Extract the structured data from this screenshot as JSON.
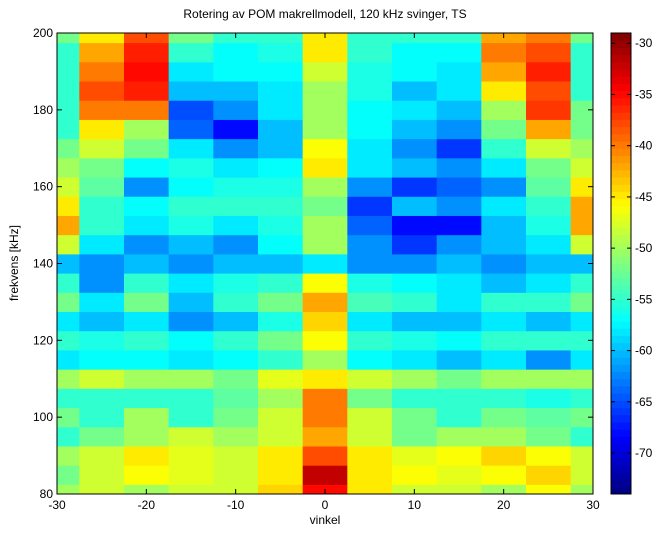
{
  "chart_data": {
    "type": "heatmap",
    "title": "Rotering av POM makrellmodell, 120 kHz svinger, TS",
    "x_label": "vinkel",
    "y_label": "frekvens [kHz]",
    "x": [
      -30,
      -25,
      -20,
      -15,
      -10,
      -5,
      0,
      5,
      10,
      15,
      20,
      25,
      30
    ],
    "y": [
      80,
      85,
      90,
      95,
      100,
      105,
      110,
      115,
      120,
      125,
      130,
      135,
      140,
      145,
      150,
      155,
      160,
      165,
      170,
      175,
      180,
      185,
      190,
      195,
      200
    ],
    "z": [
      [
        -50,
        -48,
        -50,
        -48,
        -48,
        -44,
        -35,
        -45,
        -48,
        -48,
        -50,
        -46,
        -50
      ],
      [
        -52,
        -48,
        -46,
        -47,
        -48,
        -45,
        -32,
        -45,
        -46,
        -47,
        -46,
        -44,
        -48
      ],
      [
        -50,
        -48,
        -45,
        -47,
        -48,
        -45,
        -38,
        -45,
        -47,
        -46,
        -44,
        -46,
        -48
      ],
      [
        -55,
        -52,
        -50,
        -48,
        -50,
        -48,
        -42,
        -48,
        -52,
        -50,
        -50,
        -52,
        -55
      ],
      [
        -52,
        -55,
        -50,
        -55,
        -52,
        -48,
        -40,
        -48,
        -52,
        -55,
        -52,
        -53,
        -52
      ],
      [
        -55,
        -55,
        -55,
        -55,
        -53,
        -50,
        -40,
        -52,
        -55,
        -55,
        -55,
        -56,
        -55
      ],
      [
        -50,
        -48,
        -50,
        -50,
        -52,
        -47,
        -45,
        -48,
        -50,
        -52,
        -50,
        -50,
        -50
      ],
      [
        -58,
        -57,
        -57,
        -58,
        -57,
        -55,
        -50,
        -57,
        -58,
        -60,
        -58,
        -62,
        -58
      ],
      [
        -55,
        -56,
        -55,
        -57,
        -55,
        -52,
        -46,
        -55,
        -56,
        -57,
        -55,
        -55,
        -55
      ],
      [
        -58,
        -60,
        -58,
        -62,
        -60,
        -56,
        -44,
        -58,
        -60,
        -60,
        -58,
        -60,
        -58
      ],
      [
        -52,
        -58,
        -52,
        -60,
        -55,
        -52,
        -42,
        -54,
        -55,
        -58,
        -55,
        -55,
        -52
      ],
      [
        -55,
        -62,
        -55,
        -58,
        -56,
        -55,
        -46,
        -56,
        -57,
        -58,
        -60,
        -58,
        -55
      ],
      [
        -60,
        -62,
        -60,
        -62,
        -60,
        -60,
        -58,
        -62,
        -62,
        -60,
        -62,
        -60,
        -60
      ],
      [
        -48,
        -58,
        -62,
        -60,
        -62,
        -57,
        -50,
        -62,
        -66,
        -62,
        -60,
        -58,
        -48
      ],
      [
        -42,
        -55,
        -58,
        -56,
        -58,
        -56,
        -50,
        -64,
        -68,
        -68,
        -60,
        -56,
        -42
      ],
      [
        -45,
        -55,
        -57,
        -55,
        -55,
        -55,
        -52,
        -66,
        -60,
        -62,
        -58,
        -55,
        -42
      ],
      [
        -48,
        -53,
        -62,
        -57,
        -56,
        -56,
        -50,
        -62,
        -66,
        -64,
        -62,
        -53,
        -45
      ],
      [
        -50,
        -52,
        -57,
        -56,
        -58,
        -57,
        -45,
        -58,
        -60,
        -62,
        -58,
        -52,
        -48
      ],
      [
        -52,
        -48,
        -52,
        -58,
        -62,
        -60,
        -46,
        -58,
        -62,
        -66,
        -55,
        -48,
        -50
      ],
      [
        -55,
        -45,
        -50,
        -64,
        -68,
        -60,
        -50,
        -57,
        -60,
        -62,
        -52,
        -42,
        -52
      ],
      [
        -55,
        -40,
        -40,
        -65,
        -62,
        -58,
        -50,
        -57,
        -58,
        -60,
        -50,
        -37,
        -52
      ],
      [
        -55,
        -38,
        -36,
        -60,
        -60,
        -58,
        -50,
        -56,
        -60,
        -58,
        -45,
        -38,
        -55
      ],
      [
        -55,
        -40,
        -35,
        -58,
        -57,
        -57,
        -48,
        -56,
        -57,
        -58,
        -42,
        -36,
        -55
      ],
      [
        -55,
        -42,
        -36,
        -55,
        -57,
        -56,
        -45,
        -55,
        -57,
        -57,
        -40,
        -38,
        -55
      ],
      [
        -52,
        -45,
        -38,
        -52,
        -55,
        -55,
        -45,
        -55,
        -55,
        -55,
        -42,
        -40,
        -52
      ]
    ],
    "xlim": [
      -30,
      30
    ],
    "xticks": [
      -30,
      -20,
      -10,
      0,
      10,
      20,
      30
    ],
    "ylim": [
      80,
      200
    ],
    "yticks": [
      80,
      100,
      120,
      140,
      160,
      180,
      200
    ],
    "zlim": [
      -74,
      -29
    ],
    "zticks": [
      -30,
      -35,
      -40,
      -45,
      -50,
      -55,
      -60,
      -65,
      -70
    ],
    "colormap": "jet"
  }
}
